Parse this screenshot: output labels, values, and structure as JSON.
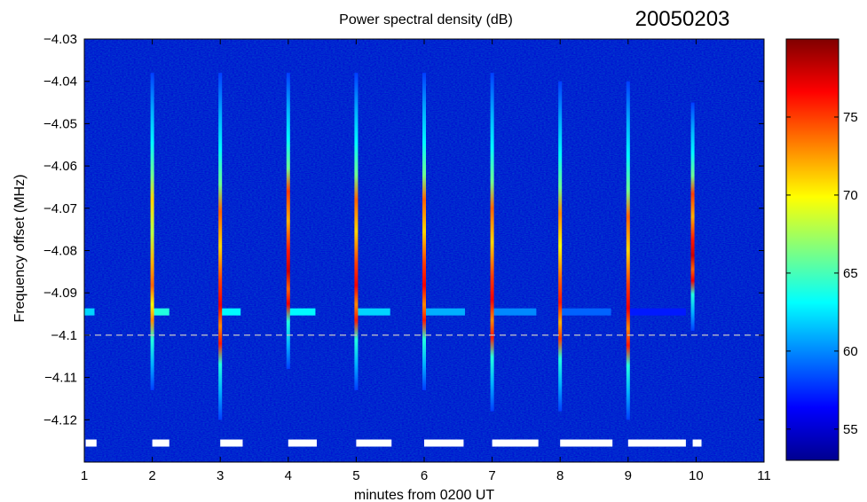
{
  "chart_data": {
    "type": "heatmap",
    "title": "Power spectral density (dB)",
    "date_label": "20050203",
    "xlabel": "minutes from 0200 UT",
    "ylabel": "Frequency offset (MHz)",
    "xlim": [
      1,
      11
    ],
    "ylim": [
      -4.13,
      -4.03
    ],
    "xticks": [
      1,
      2,
      3,
      4,
      5,
      6,
      7,
      8,
      9,
      10,
      11
    ],
    "yticks": [
      -4.03,
      -4.04,
      -4.05,
      -4.06,
      -4.07,
      -4.08,
      -4.09,
      -4.1,
      -4.11,
      -4.12
    ],
    "ytick_labels": [
      "−4.03",
      "−4.04",
      "−4.05",
      "−4.06",
      "−4.07",
      "−4.08",
      "−4.09",
      "−4.1",
      "−4.11",
      "−4.12"
    ],
    "colorbar": {
      "range": [
        53,
        80
      ],
      "ticks": [
        55,
        60,
        65,
        70,
        75
      ],
      "colormap": "jet"
    },
    "reference_line": {
      "y": -4.1,
      "style": "dashed",
      "color": "#c8c8c8"
    },
    "background_level_db": 55,
    "vertical_streaks": [
      {
        "x": 2.0,
        "y_top": -4.038,
        "y_bottom": -4.113,
        "peak_db": 74
      },
      {
        "x": 3.0,
        "y_top": -4.038,
        "y_bottom": -4.12,
        "peak_db": 77
      },
      {
        "x": 4.0,
        "y_top": -4.038,
        "y_bottom": -4.108,
        "peak_db": 78
      },
      {
        "x": 5.0,
        "y_top": -4.038,
        "y_bottom": -4.113,
        "peak_db": 77
      },
      {
        "x": 6.0,
        "y_top": -4.038,
        "y_bottom": -4.113,
        "peak_db": 77
      },
      {
        "x": 7.0,
        "y_top": -4.038,
        "y_bottom": -4.118,
        "peak_db": 77
      },
      {
        "x": 8.0,
        "y_top": -4.04,
        "y_bottom": -4.118,
        "peak_db": 76
      },
      {
        "x": 9.0,
        "y_top": -4.04,
        "y_bottom": -4.12,
        "peak_db": 77
      },
      {
        "x": 9.95,
        "y_top": -4.045,
        "y_bottom": -4.099,
        "peak_db": 78
      }
    ],
    "horizontal_bands": [
      {
        "x_start": 1.0,
        "x_end": 1.15,
        "y": -4.0945,
        "level_db": 62
      },
      {
        "x_start": 2.0,
        "x_end": 2.25,
        "y": -4.0945,
        "level_db": 64
      },
      {
        "x_start": 3.0,
        "x_end": 3.3,
        "y": -4.0945,
        "level_db": 63
      },
      {
        "x_start": 4.0,
        "x_end": 4.4,
        "y": -4.0945,
        "level_db": 63
      },
      {
        "x_start": 5.0,
        "x_end": 5.5,
        "y": -4.0945,
        "level_db": 62
      },
      {
        "x_start": 6.0,
        "x_end": 6.6,
        "y": -4.0945,
        "level_db": 61
      },
      {
        "x_start": 7.0,
        "x_end": 7.65,
        "y": -4.0945,
        "level_db": 60
      },
      {
        "x_start": 8.0,
        "x_end": 8.75,
        "y": -4.0945,
        "level_db": 59
      },
      {
        "x_start": 9.0,
        "x_end": 9.85,
        "y": -4.0945,
        "level_db": 57
      }
    ],
    "timeline_bars": [
      {
        "x_start": 1.02,
        "x_end": 1.18
      },
      {
        "x_start": 2.0,
        "x_end": 2.25
      },
      {
        "x_start": 3.0,
        "x_end": 3.33
      },
      {
        "x_start": 4.0,
        "x_end": 4.42
      },
      {
        "x_start": 5.0,
        "x_end": 5.52
      },
      {
        "x_start": 6.0,
        "x_end": 6.58
      },
      {
        "x_start": 7.0,
        "x_end": 7.68
      },
      {
        "x_start": 8.0,
        "x_end": 8.77
      },
      {
        "x_start": 9.0,
        "x_end": 9.85
      },
      {
        "x_start": 9.95,
        "x_end": 10.08
      }
    ],
    "timeline_bar_y": -4.1255
  }
}
